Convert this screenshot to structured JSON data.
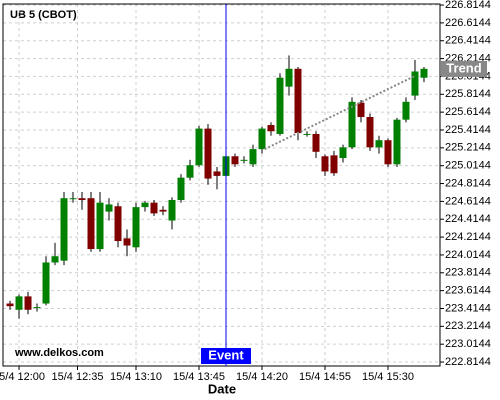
{
  "chart_data": {
    "type": "candlestick",
    "title": "UB 5 (CBOT)",
    "x_label": "Date",
    "watermark": "www.delkos.com",
    "up_color": "#008000",
    "down_color": "#800000",
    "grid": true,
    "open": [
      223.47,
      223.4,
      223.55,
      223.43,
      223.47,
      223.93,
      223.95,
      224.65,
      224.65,
      224.65,
      224.08,
      224.5,
      224.56,
      224.2,
      224.1,
      224.55,
      224.6,
      224.52,
      224.4,
      224.63,
      224.88,
      225.02,
      225.43,
      224.95,
      224.9,
      225.12,
      225.08,
      225.03,
      225.2,
      225.47,
      225.37,
      225.9,
      226.1,
      225.37,
      225.37,
      225.12,
      225.13,
      225.1,
      225.22,
      225.72,
      225.56,
      225.22,
      225.3,
      225.03,
      225.53,
      225.8,
      226.0
    ],
    "high": [
      223.5,
      223.57,
      223.6,
      223.47,
      224.0,
      224.15,
      224.72,
      224.72,
      224.72,
      224.72,
      224.72,
      224.65,
      224.6,
      224.3,
      224.6,
      224.62,
      224.63,
      224.56,
      224.66,
      224.92,
      225.08,
      225.46,
      225.48,
      225.0,
      225.16,
      225.15,
      225.12,
      225.25,
      225.45,
      225.5,
      226.05,
      226.25,
      226.12,
      225.4,
      225.4,
      225.14,
      225.18,
      225.25,
      225.78,
      225.75,
      225.6,
      225.35,
      225.32,
      225.55,
      225.78,
      226.2,
      226.12
    ],
    "low": [
      223.4,
      223.3,
      223.35,
      223.38,
      223.45,
      223.9,
      223.9,
      224.6,
      224.52,
      224.05,
      224.05,
      224.4,
      224.1,
      224.0,
      224.05,
      224.5,
      224.45,
      224.46,
      224.3,
      224.6,
      224.85,
      225.0,
      224.8,
      224.75,
      224.88,
      225.0,
      225.04,
      225.0,
      225.15,
      225.35,
      225.35,
      225.8,
      225.3,
      225.34,
      225.1,
      224.9,
      224.9,
      225.05,
      225.2,
      225.5,
      225.18,
      225.15,
      225.0,
      225.0,
      225.5,
      225.75,
      225.95
    ],
    "close": [
      223.44,
      223.55,
      223.4,
      223.43,
      223.93,
      224.0,
      224.65,
      224.65,
      224.63,
      224.08,
      224.6,
      224.58,
      224.17,
      224.12,
      224.55,
      224.6,
      224.48,
      224.5,
      224.63,
      224.88,
      225.02,
      225.43,
      224.87,
      224.9,
      225.12,
      225.03,
      225.08,
      225.2,
      225.43,
      225.4,
      226.0,
      226.1,
      225.38,
      225.37,
      225.17,
      224.95,
      224.93,
      225.22,
      225.73,
      225.56,
      225.22,
      225.3,
      225.03,
      225.53,
      225.73,
      226.07,
      226.1
    ],
    "xlim": [
      -0.78,
      47.78
    ],
    "xticks": [
      {
        "value": 1,
        "label": "15/4 12:00"
      },
      {
        "value": 7.5,
        "label": "15/4 12:35"
      },
      {
        "value": 14,
        "label": "15/4 13:10"
      },
      {
        "value": 21,
        "label": "15/4 13:45"
      },
      {
        "value": 28,
        "label": "15/4 14:20"
      },
      {
        "value": 35,
        "label": "15/4 14:55"
      },
      {
        "value": 42,
        "label": "15/4 15:30"
      }
    ],
    "ylim": [
      222.77,
      226.826
    ],
    "yticks": [
      222.8144,
      223.0144,
      223.2144,
      223.4144,
      223.6144,
      223.8144,
      224.0144,
      224.2144,
      224.4144,
      224.6144,
      224.8144,
      225.0144,
      225.2144,
      225.4144,
      225.6144,
      225.8144,
      226.0144,
      226.2144,
      226.4144,
      226.6144,
      226.8144
    ],
    "trend": {
      "label": "Trend",
      "from": [
        28.3,
        225.2
      ],
      "to": [
        45,
        226.02
      ],
      "color": "#888888"
    },
    "event": {
      "label": "Event",
      "x": 24,
      "color": "#0000ff"
    }
  }
}
